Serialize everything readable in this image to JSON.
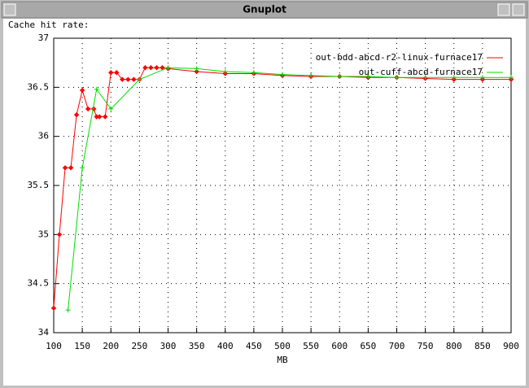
{
  "window_title": "Gnuplot",
  "chart_data": {
    "type": "line",
    "y_label": "Cache hit rate:",
    "x_label": "MB",
    "xlim": [
      100,
      900
    ],
    "xticks": [
      100,
      150,
      200,
      250,
      300,
      350,
      400,
      450,
      500,
      550,
      600,
      650,
      700,
      750,
      800,
      850,
      900
    ],
    "ylim": [
      34,
      37
    ],
    "yticks": [
      34,
      34.5,
      35,
      35.5,
      36,
      36.5,
      37
    ],
    "grid": true,
    "legend": "top-right",
    "series": [
      {
        "name": "out-bdd-abcd-r2-linux-furnace17",
        "color": "#ff0000",
        "marker": "diamond",
        "x": [
          100,
          110,
          120,
          130,
          140,
          150,
          160,
          170,
          175,
          180,
          190,
          200,
          210,
          220,
          230,
          240,
          250,
          260,
          270,
          280,
          290,
          300,
          350,
          400,
          450,
          500,
          550,
          600,
          650,
          700,
          750,
          800,
          850,
          900
        ],
        "values": [
          34.25,
          35.0,
          35.68,
          35.68,
          36.22,
          36.47,
          36.28,
          36.28,
          36.2,
          36.2,
          36.2,
          36.65,
          36.65,
          36.58,
          36.58,
          36.58,
          36.58,
          36.7,
          36.7,
          36.7,
          36.7,
          36.69,
          36.66,
          36.64,
          36.64,
          36.62,
          36.61,
          36.61,
          36.6,
          36.6,
          36.59,
          36.58,
          36.58,
          36.58
        ]
      },
      {
        "name": "out-cuff-abcd-furnace17",
        "color": "#00dd00",
        "marker": "plus",
        "x": [
          125,
          150,
          175,
          200,
          250,
          300,
          350,
          400,
          450,
          500,
          550,
          600,
          650,
          700,
          750,
          800,
          850,
          900
        ],
        "values": [
          34.23,
          35.68,
          36.48,
          36.28,
          36.58,
          36.7,
          36.69,
          36.66,
          36.65,
          36.63,
          36.62,
          36.61,
          36.61,
          36.6,
          36.6,
          36.6,
          36.6,
          36.6
        ]
      }
    ]
  }
}
